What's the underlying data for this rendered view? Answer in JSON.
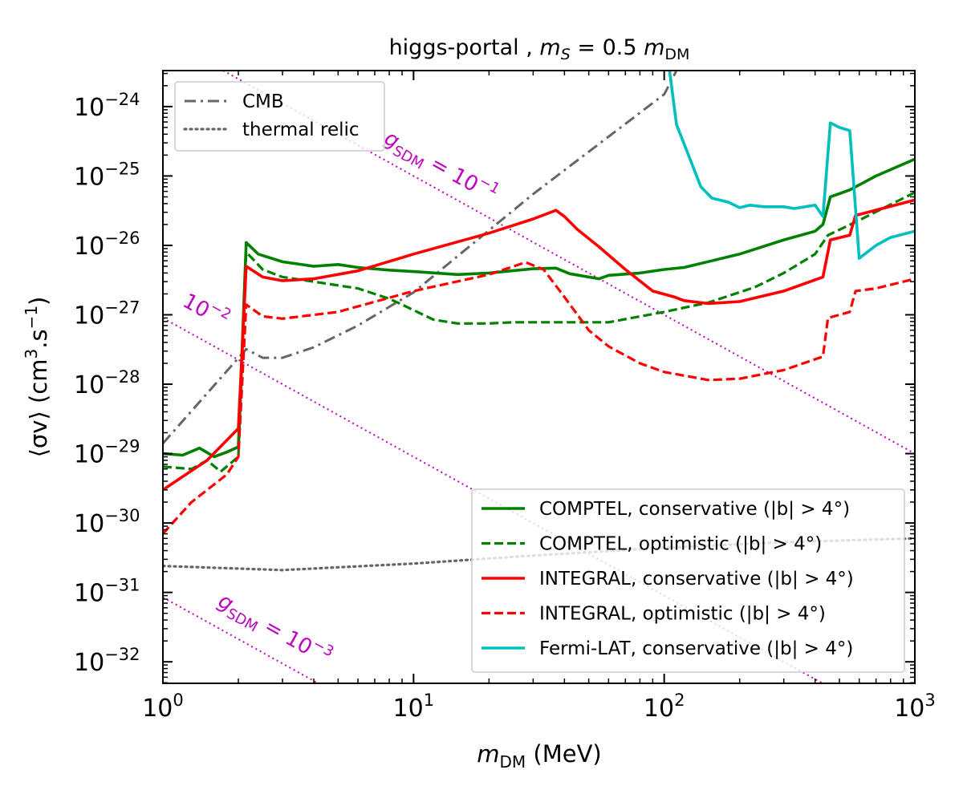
{
  "chart_data": {
    "type": "line",
    "title": "higgs-portal ,  m_S = 0.5 m_DM",
    "title_parts": {
      "prefix": "higgs-portal ,  ",
      "m": "m",
      "s": "S",
      "eq": " = 0.5 ",
      "m2": "m",
      "dm": "DM"
    },
    "xlabel": "m_DM (MeV)",
    "xlabel_parts": {
      "m": "m",
      "sub": "DM",
      "unit": " (MeV)"
    },
    "ylabel": "⟨σv⟩ (cm³.s⁻¹)",
    "ylabel_parts": {
      "a": "⟨σv⟩ (cm",
      "sup1": "3",
      "b": ".s",
      "sup2": "−1",
      "c": ")"
    },
    "xscale": "log",
    "yscale": "log",
    "xlim": [
      1,
      1000
    ],
    "ylim": [
      4.9e-33,
      3.3e-24
    ],
    "x_ticks": [
      {
        "v": 1,
        "exp": "0"
      },
      {
        "v": 10,
        "exp": "1"
      },
      {
        "v": 100,
        "exp": "2"
      },
      {
        "v": 1000,
        "exp": "3"
      }
    ],
    "y_ticks": [
      {
        "v": 1e-24,
        "exp": "−24"
      },
      {
        "v": 1e-25,
        "exp": "−25"
      },
      {
        "v": 1e-26,
        "exp": "−26"
      },
      {
        "v": 1e-27,
        "exp": "−27"
      },
      {
        "v": 1e-28,
        "exp": "−28"
      },
      {
        "v": 1e-29,
        "exp": "−29"
      },
      {
        "v": 1e-30,
        "exp": "−30"
      },
      {
        "v": 1e-31,
        "exp": "−31"
      },
      {
        "v": 1e-32,
        "exp": "−32"
      }
    ],
    "grid": false,
    "legends": [
      {
        "placement": "top-left",
        "entries": [
          "CMB",
          "thermal relic"
        ]
      },
      {
        "placement": "bottom-right",
        "entries": [
          "COMPTEL, conservative (|b| > 4°)",
          "COMPTEL, optimistic (|b| > 4°)",
          "INTEGRAL, conservative (|b| > 4°)",
          "INTEGRAL, optimistic (|b| > 4°)",
          "Fermi-LAT, conservative (|b| > 4°)"
        ]
      }
    ],
    "series": [
      {
        "name": "CMB",
        "label": "CMB",
        "color": "#666666",
        "style": "dashdot",
        "points": [
          [
            1,
            1.4e-29
          ],
          [
            2.15,
            3.2e-28
          ],
          [
            2.5,
            2.4e-28
          ],
          [
            3,
            2.4e-28
          ],
          [
            4,
            3.4e-28
          ],
          [
            6,
            7e-28
          ],
          [
            10,
            2.1e-27
          ],
          [
            30,
            5.5e-26
          ],
          [
            100,
            1.5e-24
          ],
          [
            112,
            3.3e-24
          ]
        ]
      },
      {
        "name": "thermal relic",
        "label": "thermal relic",
        "color": "#666666",
        "style": "dotted",
        "points": [
          [
            1,
            2.4e-31
          ],
          [
            3,
            2.1e-31
          ],
          [
            10,
            2.6e-31
          ],
          [
            30,
            3.4e-31
          ],
          [
            100,
            4.4e-31
          ],
          [
            300,
            5.3e-31
          ],
          [
            1000,
            6e-31
          ]
        ]
      },
      {
        "name": "COMPTEL, conservative",
        "label": "COMPTEL, conservative (|b| > 4°)",
        "color": "#008000",
        "style": "solid",
        "points": [
          [
            1,
            1e-29
          ],
          [
            1.2,
            9.5e-30
          ],
          [
            1.4,
            1.2e-29
          ],
          [
            1.6,
            9e-30
          ],
          [
            1.8,
            1.05e-29
          ],
          [
            2.0,
            1.25e-29
          ],
          [
            2.15,
            1.1e-26
          ],
          [
            2.4,
            7.5e-27
          ],
          [
            3,
            5.8e-27
          ],
          [
            4,
            5e-27
          ],
          [
            5,
            5.3e-27
          ],
          [
            6,
            4.8e-27
          ],
          [
            8,
            4.4e-27
          ],
          [
            10,
            4.2e-27
          ],
          [
            15,
            3.8e-27
          ],
          [
            20,
            4e-27
          ],
          [
            30,
            4.6e-27
          ],
          [
            37,
            4.7e-27
          ],
          [
            42,
            3.9e-27
          ],
          [
            55,
            3.3e-27
          ],
          [
            60,
            3.7e-27
          ],
          [
            80,
            4e-27
          ],
          [
            100,
            4.5e-27
          ],
          [
            120,
            4.8e-27
          ],
          [
            200,
            7.5e-27
          ],
          [
            300,
            1.2e-26
          ],
          [
            400,
            1.6e-26
          ],
          [
            430,
            2e-26
          ],
          [
            460,
            5e-26
          ],
          [
            550,
            6.3e-26
          ],
          [
            700,
            1e-25
          ],
          [
            1000,
            1.75e-25
          ]
        ]
      },
      {
        "name": "COMPTEL, optimistic",
        "label": "COMPTEL, optimistic (|b| > 4°)",
        "color": "#008000",
        "style": "dashed",
        "points": [
          [
            1,
            6.5e-30
          ],
          [
            1.3,
            6e-30
          ],
          [
            1.5,
            8e-30
          ],
          [
            1.7,
            5.5e-30
          ],
          [
            2,
            9e-30
          ],
          [
            2.15,
            8e-27
          ],
          [
            2.5,
            4.5e-27
          ],
          [
            3,
            3.5e-27
          ],
          [
            4,
            3e-27
          ],
          [
            6,
            2.4e-27
          ],
          [
            8,
            1.7e-27
          ],
          [
            9,
            1.4e-27
          ],
          [
            12,
            8.5e-28
          ],
          [
            15,
            7.5e-28
          ],
          [
            20,
            7.5e-28
          ],
          [
            25,
            7.8e-28
          ],
          [
            40,
            7.8e-28
          ],
          [
            60,
            7.8e-28
          ],
          [
            100,
            1.1e-27
          ],
          [
            150,
            1.5e-27
          ],
          [
            230,
            2.5e-27
          ],
          [
            300,
            4e-27
          ],
          [
            400,
            7.5e-27
          ],
          [
            450,
            1.4e-26
          ],
          [
            600,
            2.3e-26
          ],
          [
            1000,
            5.8e-26
          ]
        ]
      },
      {
        "name": "INTEGRAL, conservative",
        "label": "INTEGRAL, conservative (|b| > 4°)",
        "color": "#ff0000",
        "style": "solid",
        "points": [
          [
            1,
            3e-30
          ],
          [
            1.5,
            8e-30
          ],
          [
            2,
            2.3e-29
          ],
          [
            2.15,
            5e-27
          ],
          [
            2.5,
            3.5e-27
          ],
          [
            3,
            3.1e-27
          ],
          [
            4,
            3.3e-27
          ],
          [
            6,
            4.3e-27
          ],
          [
            10,
            7.5e-27
          ],
          [
            20,
            1.5e-26
          ],
          [
            30,
            2.4e-26
          ],
          [
            37,
            3.2e-26
          ],
          [
            40,
            2.6e-26
          ],
          [
            45,
            1.7e-26
          ],
          [
            55,
            9.5e-27
          ],
          [
            70,
            4.5e-27
          ],
          [
            90,
            2.2e-27
          ],
          [
            110,
            1.8e-27
          ],
          [
            120,
            1.6e-27
          ],
          [
            150,
            1.45e-27
          ],
          [
            200,
            1.55e-27
          ],
          [
            300,
            2.2e-27
          ],
          [
            430,
            3.5e-27
          ],
          [
            460,
            1.2e-26
          ],
          [
            550,
            1.4e-26
          ],
          [
            580,
            2.7e-26
          ],
          [
            1000,
            4.5e-26
          ]
        ]
      },
      {
        "name": "INTEGRAL, optimistic",
        "label": "INTEGRAL, optimistic (|b| > 4°)",
        "color": "#ff0000",
        "style": "dashed",
        "points": [
          [
            1,
            7e-31
          ],
          [
            1.3,
            2e-30
          ],
          [
            1.8,
            5e-30
          ],
          [
            2,
            9e-30
          ],
          [
            2.15,
            1.4e-27
          ],
          [
            2.5,
            9.5e-28
          ],
          [
            3,
            8.8e-28
          ],
          [
            5,
            1.1e-27
          ],
          [
            10,
            2.2e-27
          ],
          [
            20,
            3.8e-27
          ],
          [
            28,
            5.7e-27
          ],
          [
            33,
            4.5e-27
          ],
          [
            40,
            1.8e-27
          ],
          [
            50,
            6e-28
          ],
          [
            60,
            3.5e-28
          ],
          [
            80,
            2e-28
          ],
          [
            100,
            1.5e-28
          ],
          [
            150,
            1.15e-28
          ],
          [
            200,
            1.2e-28
          ],
          [
            300,
            1.6e-28
          ],
          [
            430,
            2.5e-28
          ],
          [
            450,
            9e-28
          ],
          [
            550,
            1.1e-27
          ],
          [
            580,
            2.2e-27
          ],
          [
            700,
            2.4e-27
          ],
          [
            1000,
            3.3e-27
          ]
        ]
      },
      {
        "name": "Fermi-LAT, conservative",
        "label": "Fermi-LAT, conservative (|b| > 4°)",
        "color": "#00bfbf",
        "style": "solid",
        "points": [
          [
            105,
            3.3e-24
          ],
          [
            112,
            5.5e-25
          ],
          [
            125,
            2e-25
          ],
          [
            140,
            7e-26
          ],
          [
            155,
            4.8e-26
          ],
          [
            180,
            4.2e-26
          ],
          [
            200,
            3.5e-26
          ],
          [
            220,
            3.8e-26
          ],
          [
            250,
            3.6e-26
          ],
          [
            300,
            3.6e-26
          ],
          [
            330,
            3.4e-26
          ],
          [
            400,
            3.8e-26
          ],
          [
            430,
            2.6e-26
          ],
          [
            460,
            5.8e-25
          ],
          [
            500,
            5e-25
          ],
          [
            550,
            4.5e-25
          ],
          [
            600,
            6.5e-27
          ],
          [
            700,
            1e-26
          ],
          [
            800,
            1.3e-26
          ],
          [
            1000,
            1.6e-26
          ]
        ]
      }
    ],
    "reference_lines": [
      {
        "name": "g_SDM = 10^-1",
        "color": "#bf00bf",
        "style": "dotted",
        "label_g": "g",
        "label_sub": "SDM",
        "label_eq": " = 10",
        "label_exp": "−1",
        "points": [
          [
            1,
            1e-23
          ],
          [
            1000,
            1e-29
          ]
        ]
      },
      {
        "name": "10^-2",
        "color": "#bf00bf",
        "style": "dotted",
        "label_g": "",
        "label_sub": "",
        "label_eq": "10",
        "label_exp": "−2",
        "points": [
          [
            1,
            9e-28
          ],
          [
            1000,
            9e-34
          ]
        ]
      },
      {
        "name": "g_SDM = 10^-3",
        "color": "#bf00bf",
        "style": "dotted",
        "label_g": "g",
        "label_sub": "SDM",
        "label_eq": " = 10",
        "label_exp": "−3",
        "points": [
          [
            1,
            8.5e-32
          ],
          [
            1000,
            8.5e-38
          ]
        ]
      }
    ]
  }
}
